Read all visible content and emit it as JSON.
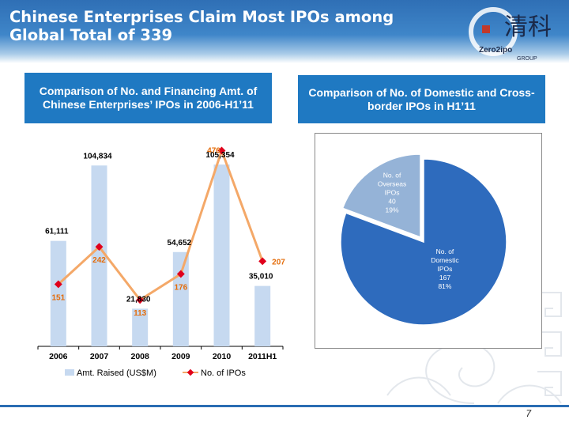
{
  "header": {
    "title": "Chinese Enterprises Claim Most IPOs among Global Total of 339",
    "logo_glyphs": "清科",
    "logo_brand": "Zero2ipo",
    "logo_group": "GROUP"
  },
  "chart_data": [
    {
      "type": "bar",
      "title": "Comparison of No. and Financing Amt. of Chinese Enterprises’ IPOs in 2006-H1’11",
      "categories": [
        "2006",
        "2007",
        "2008",
        "2009",
        "2010",
        "2011H1"
      ],
      "series": [
        {
          "name": "Amt. Raised (US$M)",
          "kind": "bar",
          "color": "#c6d9f0",
          "values": [
            61111,
            104834,
            21830,
            54652,
            105354,
            35010
          ],
          "labels": [
            "61,111",
            "104,834",
            "21,830",
            "54,652",
            "105,354",
            "35,010"
          ]
        },
        {
          "name": "No. of IPOs",
          "kind": "line",
          "color": "#f4a868",
          "marker_color": "#e0001b",
          "values": [
            151,
            242,
            113,
            176,
            476,
            207
          ],
          "labels": [
            "151",
            "242",
            "113",
            "176",
            "476",
            "207"
          ]
        }
      ],
      "ylim": [
        0,
        110000
      ],
      "y2lim": [
        0,
        500
      ],
      "legend": "bottom"
    },
    {
      "type": "pie",
      "title": "Comparison of  No. of Domestic and Cross-border  IPOs in H1’11",
      "slices": [
        {
          "name": "No. of Overseas IPOs",
          "lines": [
            "No. of",
            "Overseas",
            "IPOs",
            "40",
            "19%"
          ],
          "value": 40,
          "percent": 19,
          "color": "#95b3d7"
        },
        {
          "name": "No. of Domestic IPOs",
          "lines": [
            "No. of",
            "Domestic",
            "IPOs",
            "167",
            "81%"
          ],
          "value": 167,
          "percent": 81,
          "color": "#2e6bbd"
        }
      ]
    }
  ],
  "footer": {
    "page": "7"
  }
}
